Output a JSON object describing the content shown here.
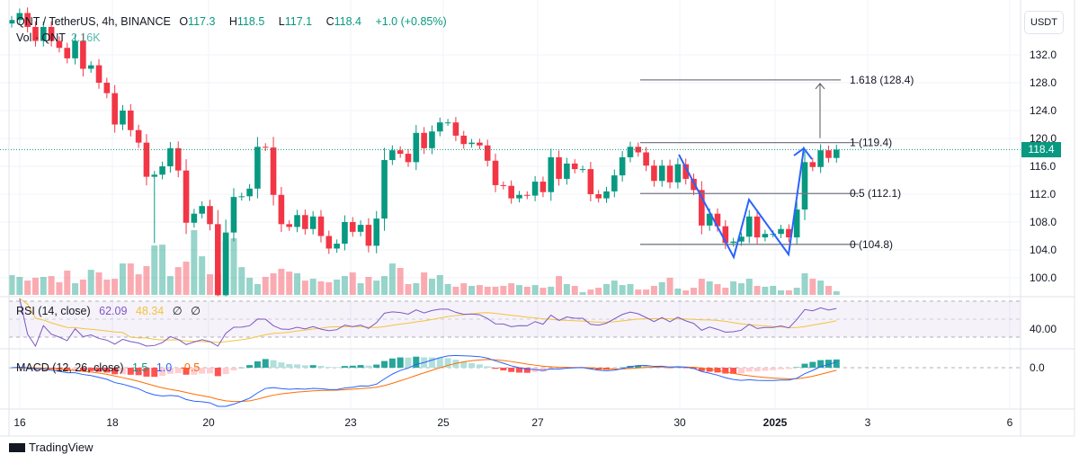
{
  "header": {
    "symbol": "QNT / TetherUS, 4h, BINANCE",
    "open_label": "O",
    "open": "117.3",
    "high_label": "H",
    "high": "118.5",
    "low_label": "L",
    "low": "117.1",
    "close_label": "C",
    "close": "118.4",
    "change": "+1.0 (+0.85%)",
    "volume_label": "Vol · QNT",
    "volume_value": "2.16K"
  },
  "currency_button": "USDT",
  "last_price": "118.4",
  "rsi": {
    "label": "RSI (14, close)",
    "value": "62.09",
    "ma_value": "48.34",
    "extra1": "∅",
    "extra2": "∅",
    "axis_label": "40.00"
  },
  "macd": {
    "label": "MACD (12, 26, close)",
    "hist": "1.5",
    "macd": "1.0",
    "signal": "-0.5",
    "axis_label": "0.0"
  },
  "fib_levels": [
    {
      "label": "1.618 (128.4)",
      "price": 128.4
    },
    {
      "label": "1 (119.4)",
      "price": 119.4
    },
    {
      "label": "0.5 (112.1)",
      "price": 112.1
    },
    {
      "label": "0 (104.8)",
      "price": 104.8
    }
  ],
  "footer": {
    "brand": "TradingView"
  },
  "colors": {
    "up": "#089981",
    "down": "#f23645",
    "rsi": "#7e57c2",
    "rsi_ma": "#f5c33b",
    "macd": "#2962ff",
    "signal": "#ff6d00",
    "pattern": "#2962ff"
  },
  "chart_data": {
    "type": "candlestick",
    "symbol": "QNTUSDT",
    "interval": "4h",
    "price_ticks": [
      132.0,
      128.0,
      124.0,
      120.0,
      116.0,
      112.0,
      108.0,
      104.0,
      100.0
    ],
    "price_axis_labels": [
      "132.0",
      "128.0",
      "124.0",
      "120.0",
      "116.0",
      "112.0",
      "108.0",
      "104.0",
      "100.0"
    ],
    "x_tick_labels": [
      "16",
      "18",
      "20",
      "23",
      "25",
      "27",
      "30",
      "2025",
      "3",
      "6"
    ],
    "first_open": 136.5,
    "closes": [
      137,
      138,
      136,
      134,
      136,
      134,
      133,
      131.5,
      134,
      130,
      130.5,
      128,
      126.5,
      122,
      124,
      121.2,
      119.4,
      114.5,
      114.8,
      116,
      118.6,
      115.4,
      107.9,
      109.2,
      110.3,
      107.7,
      97.5,
      106.5,
      111.6,
      111.7,
      112.8,
      118.8,
      118.7,
      111.9,
      107.7,
      107.3,
      109,
      107,
      108.8,
      106,
      104.2,
      104.9,
      108,
      106.6,
      107.6,
      104.6,
      108.5,
      116.9,
      118.3,
      117.8,
      116.6,
      120.8,
      118.6,
      121,
      122.3,
      122.3,
      120.4,
      119.2,
      119.4,
      119,
      116.8,
      113.3,
      113.2,
      111.4,
      111.9,
      111.8,
      113.8,
      112.3,
      117.3,
      114.2,
      116.4,
      115.6,
      115.6,
      112,
      111.4,
      112.4,
      114.7,
      117.3,
      118.8,
      118,
      116.1,
      113.9,
      116.1,
      113.7,
      116.3,
      114.2,
      112.6,
      107.5,
      109.2,
      107.4,
      105,
      105.2,
      105.9,
      108.8,
      105.8,
      106.3,
      106.3,
      107,
      105.8,
      109.8,
      116.6,
      115.9,
      118.3,
      117.2,
      118.4
    ],
    "volume_k": [
      11.9,
      10.8,
      8.6,
      10.3,
      10.8,
      11.3,
      7.6,
      14.6,
      7,
      9.2,
      15.1,
      13.5,
      9.2,
      9.7,
      18.9,
      18.9,
      12.4,
      17.3,
      29.7,
      30.2,
      11.3,
      16.7,
      20,
      38.9,
      23.2,
      12.4,
      12.4,
      32.4,
      34,
      16.7,
      10.3,
      6.5,
      10.8,
      13,
      15.7,
      14,
      13,
      8.6,
      9.7,
      8.1,
      7.6,
      9.2,
      11.3,
      13.5,
      7,
      10.8,
      8.6,
      11.3,
      18.9,
      16.2,
      6.5,
      7,
      13.5,
      9.7,
      11.9,
      6.5,
      4.9,
      7,
      5.4,
      5.9,
      4.9,
      4.9,
      5.4,
      7,
      5.9,
      4.9,
      5.9,
      4.3,
      4.9,
      11.3,
      6.5,
      5.4,
      1.6,
      3.2,
      4.3,
      6.5,
      8.6,
      5.9,
      6.5,
      3.2,
      3.2,
      5.4,
      7.6,
      10.3,
      3.8,
      2.7,
      4.3,
      9.7,
      8.1,
      6.5,
      4.3,
      8.1,
      7,
      9.7,
      5.4,
      4.9,
      5.4,
      2.7,
      2.7,
      4.3,
      13,
      9.7,
      8.6,
      5.4,
      2.16
    ],
    "special_lows": {
      "18": 105.0,
      "26": 97.0
    },
    "projection_from": 119.4,
    "projection_to": 128.4
  }
}
